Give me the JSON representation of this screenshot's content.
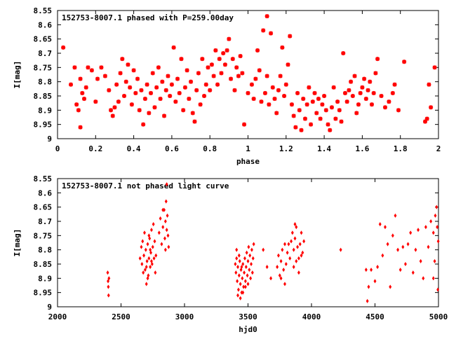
{
  "colors": {
    "points": "#ff0000",
    "axes": "#000000",
    "background": "#ffffff"
  },
  "chart_data": [
    {
      "type": "scatter",
      "title": "152753-8007.1 phased with P=259.00day",
      "xlabel": "phase",
      "ylabel": "I[mag]",
      "xlim": [
        0,
        2
      ],
      "ylim": [
        8.55,
        9
      ],
      "y_inverted": true,
      "grid": false,
      "marker": "star",
      "xticks": [
        0,
        0.2,
        0.4,
        0.6,
        0.8,
        1,
        1.2,
        1.4,
        1.6,
        1.8,
        2
      ],
      "xtick_labels": [
        "0",
        "0.2",
        "0.4",
        "0.6",
        "0.8",
        "1",
        "1.2",
        "1.4",
        "1.6",
        "1.8",
        "2"
      ],
      "yticks": [
        8.55,
        8.6,
        8.65,
        8.7,
        8.75,
        8.8,
        8.85,
        8.9,
        8.95,
        9
      ],
      "ytick_labels": [
        "8.55",
        "8.6",
        "8.65",
        "8.7",
        "8.75",
        "8.8",
        "8.85",
        "8.9",
        "8.95",
        "9"
      ],
      "points": [
        [
          0.03,
          8.68
        ],
        [
          0.07,
          8.81
        ],
        [
          0.09,
          8.75
        ],
        [
          0.1,
          8.88
        ],
        [
          0.11,
          8.9
        ],
        [
          0.12,
          8.96
        ],
        [
          0.12,
          8.79
        ],
        [
          0.13,
          8.84
        ],
        [
          0.14,
          8.86
        ],
        [
          0.15,
          8.82
        ],
        [
          0.16,
          8.75
        ],
        [
          0.18,
          8.76
        ],
        [
          0.2,
          8.87
        ],
        [
          0.21,
          8.79
        ],
        [
          0.23,
          8.75
        ],
        [
          0.25,
          8.78
        ],
        [
          0.27,
          8.83
        ],
        [
          0.28,
          8.9
        ],
        [
          0.29,
          8.92
        ],
        [
          0.3,
          8.89
        ],
        [
          0.31,
          8.81
        ],
        [
          0.32,
          8.87
        ],
        [
          0.33,
          8.77
        ],
        [
          0.34,
          8.72
        ],
        [
          0.35,
          8.85
        ],
        [
          0.36,
          8.8
        ],
        [
          0.37,
          8.74
        ],
        [
          0.38,
          8.82
        ],
        [
          0.39,
          8.88
        ],
        [
          0.4,
          8.76
        ],
        [
          0.41,
          8.84
        ],
        [
          0.42,
          8.79
        ],
        [
          0.43,
          8.9
        ],
        [
          0.44,
          8.83
        ],
        [
          0.45,
          8.95
        ],
        [
          0.46,
          8.86
        ],
        [
          0.47,
          8.81
        ],
        [
          0.48,
          8.91
        ],
        [
          0.49,
          8.84
        ],
        [
          0.5,
          8.77
        ],
        [
          0.51,
          8.89
        ],
        [
          0.52,
          8.82
        ],
        [
          0.53,
          8.75
        ],
        [
          0.54,
          8.86
        ],
        [
          0.55,
          8.8
        ],
        [
          0.56,
          8.92
        ],
        [
          0.57,
          8.83
        ],
        [
          0.58,
          8.78
        ],
        [
          0.59,
          8.85
        ],
        [
          0.6,
          8.81
        ],
        [
          0.61,
          8.68
        ],
        [
          0.62,
          8.87
        ],
        [
          0.63,
          8.79
        ],
        [
          0.64,
          8.84
        ],
        [
          0.65,
          8.72
        ],
        [
          0.66,
          8.9
        ],
        [
          0.67,
          8.82
        ],
        [
          0.68,
          8.76
        ],
        [
          0.69,
          8.86
        ],
        [
          0.7,
          8.8
        ],
        [
          0.71,
          8.91
        ],
        [
          0.72,
          8.94
        ],
        [
          0.73,
          8.83
        ],
        [
          0.74,
          8.77
        ],
        [
          0.75,
          8.88
        ],
        [
          0.76,
          8.72
        ],
        [
          0.77,
          8.85
        ],
        [
          0.78,
          8.81
        ],
        [
          0.79,
          8.75
        ],
        [
          0.8,
          8.83
        ],
        [
          0.81,
          8.74
        ],
        [
          0.82,
          8.78
        ],
        [
          0.83,
          8.69
        ],
        [
          0.84,
          8.81
        ],
        [
          0.85,
          8.72
        ],
        [
          0.86,
          8.77
        ],
        [
          0.87,
          8.7
        ],
        [
          0.88,
          8.74
        ],
        [
          0.89,
          8.69
        ],
        [
          0.9,
          8.65
        ],
        [
          0.91,
          8.79
        ],
        [
          0.92,
          8.72
        ],
        [
          0.93,
          8.83
        ],
        [
          0.94,
          8.75
        ],
        [
          0.95,
          8.78
        ],
        [
          0.96,
          8.71
        ],
        [
          0.97,
          8.77
        ],
        [
          0.98,
          8.95
        ],
        [
          1,
          8.84
        ],
        [
          1.02,
          8.81
        ],
        [
          1.03,
          8.86
        ],
        [
          1.04,
          8.79
        ],
        [
          1.05,
          8.69
        ],
        [
          1.06,
          8.76
        ],
        [
          1.07,
          8.87
        ],
        [
          1.08,
          8.62
        ],
        [
          1.09,
          8.84
        ],
        [
          1.1,
          8.57
        ],
        [
          1.1,
          8.78
        ],
        [
          1.11,
          8.88
        ],
        [
          1.12,
          8.63
        ],
        [
          1.13,
          8.82
        ],
        [
          1.14,
          8.86
        ],
        [
          1.15,
          8.91
        ],
        [
          1.16,
          8.83
        ],
        [
          1.17,
          8.78
        ],
        [
          1.18,
          8.68
        ],
        [
          1.19,
          8.85
        ],
        [
          1.2,
          8.81
        ],
        [
          1.21,
          8.74
        ],
        [
          1.22,
          8.64
        ],
        [
          1.23,
          8.88
        ],
        [
          1.24,
          8.92
        ],
        [
          1.25,
          8.96
        ],
        [
          1.26,
          8.84
        ],
        [
          1.27,
          8.9
        ],
        [
          1.28,
          8.97
        ],
        [
          1.29,
          8.86
        ],
        [
          1.3,
          8.93
        ],
        [
          1.31,
          8.88
        ],
        [
          1.32,
          8.82
        ],
        [
          1.33,
          8.95
        ],
        [
          1.34,
          8.87
        ],
        [
          1.35,
          8.84
        ],
        [
          1.36,
          8.91
        ],
        [
          1.37,
          8.86
        ],
        [
          1.38,
          8.93
        ],
        [
          1.39,
          8.88
        ],
        [
          1.4,
          8.85
        ],
        [
          1.41,
          8.9
        ],
        [
          1.42,
          8.95
        ],
        [
          1.43,
          8.97
        ],
        [
          1.44,
          8.89
        ],
        [
          1.45,
          8.82
        ],
        [
          1.46,
          8.93
        ],
        [
          1.47,
          8.87
        ],
        [
          1.48,
          8.9
        ],
        [
          1.49,
          8.94
        ],
        [
          1.5,
          8.7
        ],
        [
          1.51,
          8.84
        ],
        [
          1.52,
          8.87
        ],
        [
          1.53,
          8.83
        ],
        [
          1.54,
          8.8
        ],
        [
          1.55,
          8.85
        ],
        [
          1.56,
          8.78
        ],
        [
          1.57,
          8.91
        ],
        [
          1.58,
          8.88
        ],
        [
          1.59,
          8.84
        ],
        [
          1.6,
          8.82
        ],
        [
          1.61,
          8.79
        ],
        [
          1.62,
          8.86
        ],
        [
          1.63,
          8.83
        ],
        [
          1.64,
          8.8
        ],
        [
          1.65,
          8.88
        ],
        [
          1.66,
          8.84
        ],
        [
          1.67,
          8.77
        ],
        [
          1.68,
          8.72
        ],
        [
          1.7,
          8.85
        ],
        [
          1.72,
          8.89
        ],
        [
          1.74,
          8.87
        ],
        [
          1.76,
          8.84
        ],
        [
          1.77,
          8.81
        ],
        [
          1.79,
          8.9
        ],
        [
          1.82,
          8.73
        ],
        [
          1.93,
          8.94
        ],
        [
          1.94,
          8.93
        ],
        [
          1.95,
          8.81
        ],
        [
          1.96,
          8.89
        ],
        [
          1.98,
          8.75
        ]
      ]
    },
    {
      "type": "scatter",
      "title": "152753-8007.1 not phased light curve",
      "xlabel": "hjd0",
      "ylabel": "I[mag]",
      "xlim": [
        2000,
        5000
      ],
      "ylim": [
        8.55,
        9
      ],
      "y_inverted": true,
      "grid": false,
      "marker": "diamond",
      "xticks": [
        2000,
        2500,
        3000,
        3500,
        4000,
        4500,
        5000
      ],
      "xtick_labels": [
        "2000",
        "2500",
        "3000",
        "3500",
        "4000",
        "4500",
        "5000"
      ],
      "yticks": [
        8.55,
        8.6,
        8.65,
        8.7,
        8.75,
        8.8,
        8.85,
        8.9,
        8.95,
        9
      ],
      "ytick_labels": [
        "8.55",
        "8.6",
        "8.65",
        "8.7",
        "8.75",
        "8.8",
        "8.85",
        "8.9",
        "8.95",
        "9"
      ],
      "points": [
        [
          2395,
          8.88
        ],
        [
          2398,
          8.91
        ],
        [
          2400,
          8.93
        ],
        [
          2402,
          8.96
        ],
        [
          2405,
          8.9
        ],
        [
          2650,
          8.83
        ],
        [
          2660,
          8.79
        ],
        [
          2665,
          8.85
        ],
        [
          2670,
          8.77
        ],
        [
          2675,
          8.88
        ],
        [
          2680,
          8.82
        ],
        [
          2685,
          8.74
        ],
        [
          2690,
          8.87
        ],
        [
          2695,
          8.8
        ],
        [
          2700,
          8.92
        ],
        [
          2705,
          8.84
        ],
        [
          2710,
          8.78
        ],
        [
          2715,
          8.89
        ],
        [
          2720,
          8.83
        ],
        [
          2725,
          8.76
        ],
        [
          2730,
          8.86
        ],
        [
          2735,
          8.81
        ],
        [
          2740,
          8.73
        ],
        [
          2745,
          8.85
        ],
        [
          2750,
          8.79
        ],
        [
          2755,
          8.71
        ],
        [
          2760,
          8.83
        ],
        [
          2765,
          8.77
        ],
        [
          2770,
          8.88
        ],
        [
          2775,
          8.82
        ],
        [
          2700,
          8.86
        ],
        [
          2710,
          8.9
        ],
        [
          2720,
          8.75
        ],
        [
          2730,
          8.8
        ],
        [
          2740,
          8.84
        ],
        [
          2800,
          8.74
        ],
        [
          2810,
          8.69
        ],
        [
          2820,
          8.78
        ],
        [
          2830,
          8.72
        ],
        [
          2840,
          8.66
        ],
        [
          2845,
          8.76
        ],
        [
          2850,
          8.7
        ],
        [
          2855,
          8.63
        ],
        [
          2860,
          8.73
        ],
        [
          2865,
          8.68
        ],
        [
          2870,
          8.75
        ],
        [
          2875,
          8.79
        ],
        [
          2830,
          8.66
        ],
        [
          2850,
          8.8
        ],
        [
          2860,
          8.57
        ],
        [
          3400,
          8.85
        ],
        [
          3405,
          8.88
        ],
        [
          3410,
          8.83
        ],
        [
          3415,
          8.91
        ],
        [
          3420,
          8.86
        ],
        [
          3425,
          8.94
        ],
        [
          3430,
          8.89
        ],
        [
          3435,
          8.84
        ],
        [
          3440,
          8.92
        ],
        [
          3445,
          8.87
        ],
        [
          3450,
          8.95
        ],
        [
          3455,
          8.9
        ],
        [
          3460,
          8.85
        ],
        [
          3465,
          8.93
        ],
        [
          3470,
          8.88
        ],
        [
          3475,
          8.83
        ],
        [
          3480,
          8.91
        ],
        [
          3485,
          8.86
        ],
        [
          3490,
          8.81
        ],
        [
          3495,
          8.89
        ],
        [
          3500,
          8.84
        ],
        [
          3505,
          8.79
        ],
        [
          3510,
          8.87
        ],
        [
          3515,
          8.82
        ],
        [
          3520,
          8.9
        ],
        [
          3525,
          8.85
        ],
        [
          3530,
          8.8
        ],
        [
          3535,
          8.88
        ],
        [
          3540,
          8.83
        ],
        [
          3545,
          8.78
        ],
        [
          3420,
          8.96
        ],
        [
          3440,
          8.97
        ],
        [
          3460,
          8.95
        ],
        [
          3480,
          8.93
        ],
        [
          3500,
          8.92
        ],
        [
          3410,
          8.8
        ],
        [
          3430,
          8.82
        ],
        [
          3450,
          8.86
        ],
        [
          3620,
          8.8
        ],
        [
          3650,
          8.86
        ],
        [
          3680,
          8.9
        ],
        [
          3730,
          8.86
        ],
        [
          3740,
          8.82
        ],
        [
          3750,
          8.89
        ],
        [
          3760,
          8.84
        ],
        [
          3770,
          8.8
        ],
        [
          3780,
          8.87
        ],
        [
          3790,
          8.92
        ],
        [
          3800,
          8.85
        ],
        [
          3810,
          8.81
        ],
        [
          3820,
          8.78
        ],
        [
          3830,
          8.83
        ],
        [
          3840,
          8.77
        ],
        [
          3850,
          8.74
        ],
        [
          3860,
          8.8
        ],
        [
          3870,
          8.76
        ],
        [
          3880,
          8.72
        ],
        [
          3890,
          8.79
        ],
        [
          3900,
          8.83
        ],
        [
          3910,
          8.78
        ],
        [
          3920,
          8.74
        ],
        [
          3930,
          8.81
        ],
        [
          3940,
          8.77
        ],
        [
          3860,
          8.86
        ],
        [
          3880,
          8.84
        ],
        [
          3900,
          8.88
        ],
        [
          3920,
          8.82
        ],
        [
          3870,
          8.71
        ],
        [
          3760,
          8.9
        ],
        [
          3790,
          8.78
        ],
        [
          4230,
          8.8
        ],
        [
          4430,
          8.87
        ],
        [
          4440,
          8.98
        ],
        [
          4450,
          8.93
        ],
        [
          4470,
          8.87
        ],
        [
          4500,
          8.91
        ],
        [
          4520,
          8.86
        ],
        [
          4540,
          8.71
        ],
        [
          4560,
          8.82
        ],
        [
          4580,
          8.72
        ],
        [
          4600,
          8.78
        ],
        [
          4620,
          8.93
        ],
        [
          4640,
          8.75
        ],
        [
          4660,
          8.68
        ],
        [
          4680,
          8.8
        ],
        [
          4700,
          8.87
        ],
        [
          4720,
          8.79
        ],
        [
          4740,
          8.85
        ],
        [
          4760,
          8.78
        ],
        [
          4780,
          8.74
        ],
        [
          4800,
          8.88
        ],
        [
          4820,
          8.8
        ],
        [
          4840,
          8.73
        ],
        [
          4860,
          8.84
        ],
        [
          4880,
          8.9
        ],
        [
          4900,
          8.72
        ],
        [
          4920,
          8.79
        ],
        [
          4940,
          8.7
        ],
        [
          4960,
          8.74
        ],
        [
          4975,
          8.68
        ],
        [
          4985,
          8.65
        ],
        [
          4990,
          8.72
        ],
        [
          4998,
          8.77
        ],
        [
          4970,
          8.84
        ],
        [
          4960,
          8.9
        ],
        [
          4995,
          8.94
        ]
      ]
    }
  ]
}
